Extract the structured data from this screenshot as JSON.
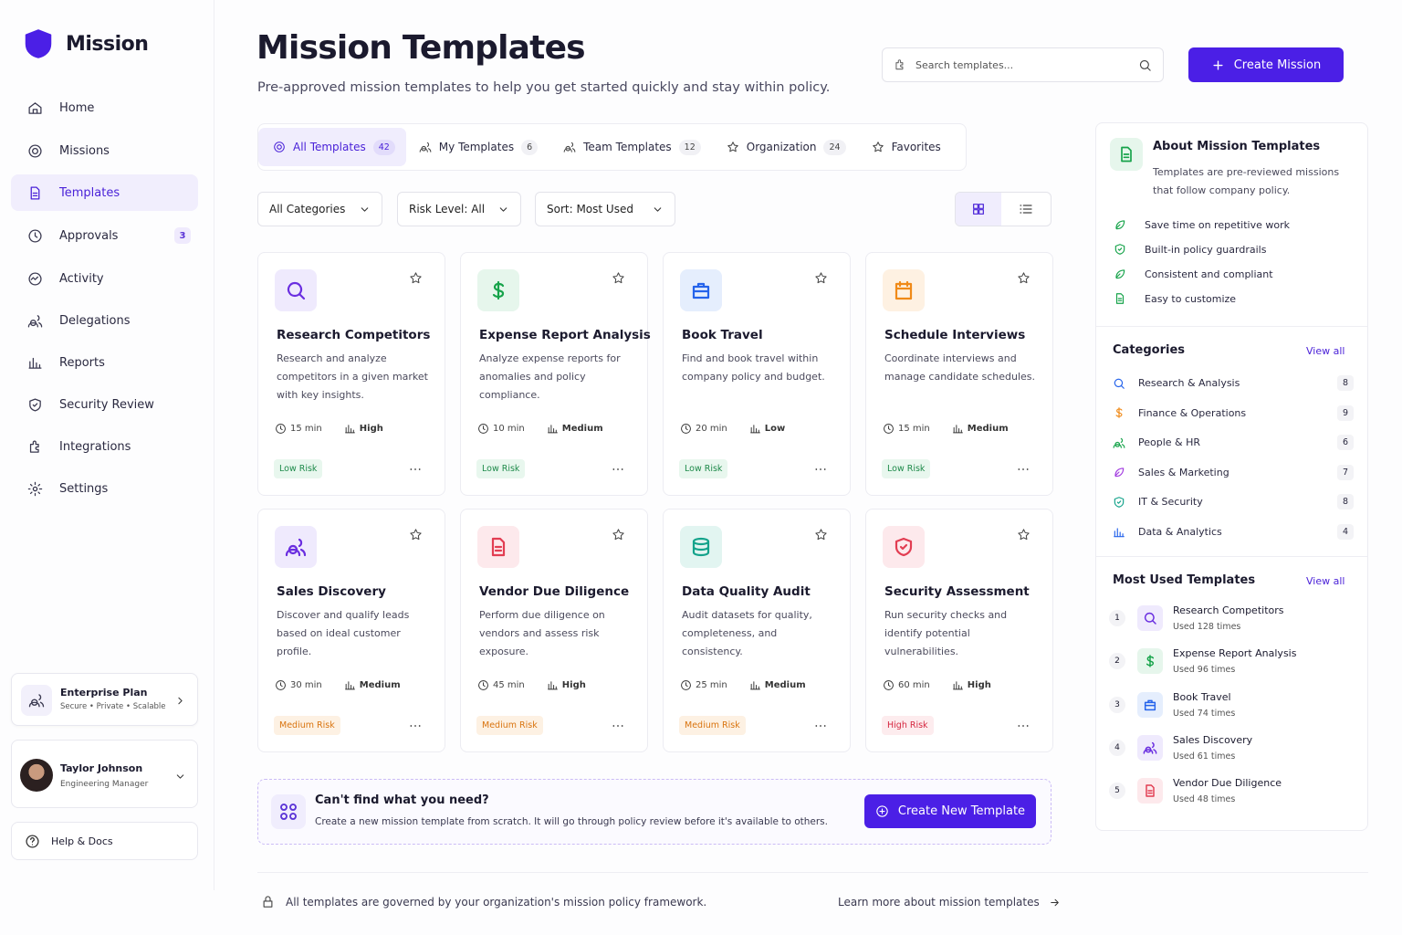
{
  "brand": "Mission",
  "nav": [
    {
      "label": "Home"
    },
    {
      "label": "Missions"
    },
    {
      "label": "Templates"
    },
    {
      "label": "Approvals",
      "badge": 3
    },
    {
      "label": "Activity"
    },
    {
      "label": "Delegations"
    },
    {
      "label": "Reports"
    },
    {
      "label": "Security Review"
    },
    {
      "label": "Integrations"
    },
    {
      "label": "Settings"
    }
  ],
  "plan": {
    "title": "Enterprise Plan",
    "subtitle": "Secure • Private • Scalable"
  },
  "user": {
    "name": "Taylor Johnson",
    "role": "Engineering Manager"
  },
  "help": "Help & Docs",
  "header": {
    "title": "Mission Templates",
    "subtitle": "Pre-approved mission templates to help you get started quickly and stay within policy.",
    "search_placeholder": "Search templates...",
    "create_button": "Create Mission"
  },
  "tabs": [
    {
      "label": "All Templates",
      "count": 42
    },
    {
      "label": "My Templates",
      "count": 6
    },
    {
      "label": "Team Templates",
      "count": 12
    },
    {
      "label": "Organization",
      "count": 24
    },
    {
      "label": "Favorites"
    }
  ],
  "filters": [
    "All Categories",
    "Risk Level: All",
    "Sort: Most Used"
  ],
  "cards": [
    {
      "title": "Research Competitors",
      "description": "Research and analyze competitors in a given market with key insights.",
      "duration": "15 min",
      "complexity": "High",
      "risk": "Low Risk"
    },
    {
      "title": "Expense Report Analysis",
      "description": "Analyze expense reports for anomalies and policy compliance.",
      "duration": "10 min",
      "complexity": "Medium",
      "risk": "Low Risk"
    },
    {
      "title": "Book Travel",
      "description": "Find and book travel within company policy and budget.",
      "duration": "20 min",
      "complexity": "Low",
      "risk": "Low Risk"
    },
    {
      "title": "Schedule Interviews",
      "description": "Coordinate interviews and manage candidate schedules.",
      "duration": "15 min",
      "complexity": "Medium",
      "risk": "Low Risk"
    },
    {
      "title": "Sales Discovery",
      "description": "Discover and qualify leads based on ideal customer profile.",
      "duration": "30 min",
      "complexity": "Medium",
      "risk": "Medium Risk"
    },
    {
      "title": "Vendor Due Diligence",
      "description": "Perform due diligence on vendors and assess risk exposure.",
      "duration": "45 min",
      "complexity": "High",
      "risk": "Medium Risk"
    },
    {
      "title": "Data Quality Audit",
      "description": "Audit datasets for quality, completeness, and consistency.",
      "duration": "25 min",
      "complexity": "Medium",
      "risk": "Medium Risk"
    },
    {
      "title": "Security Assessment",
      "description": "Run security checks and identify potential vulnerabilities.",
      "duration": "60 min",
      "complexity": "High",
      "risk": "High Risk"
    }
  ],
  "cta": {
    "title": "Can't find what you need?",
    "text": "Create a new mission template from scratch. It will go through policy review before it's available to others.",
    "button": "Create New Template"
  },
  "about": {
    "title": "About Mission Templates",
    "text": "Templates are pre-reviewed missions that follow company policy.",
    "features": [
      "Save time on repetitive work",
      "Built-in policy guardrails",
      "Consistent and compliant",
      "Easy to customize"
    ]
  },
  "categories": {
    "title": "Categories",
    "view_all": "View all",
    "items": [
      {
        "name": "Research & Analysis",
        "count": 8
      },
      {
        "name": "Finance & Operations",
        "count": 9
      },
      {
        "name": "People & HR",
        "count": 6
      },
      {
        "name": "Sales & Marketing",
        "count": 7
      },
      {
        "name": "IT & Security",
        "count": 8
      },
      {
        "name": "Data & Analytics",
        "count": 4
      }
    ]
  },
  "most_used": {
    "title": "Most Used Templates",
    "view_all": "View all",
    "items": [
      {
        "rank": 1,
        "name": "Research Competitors",
        "usage": "Used 128 times"
      },
      {
        "rank": 2,
        "name": "Expense Report Analysis",
        "usage": "Used 96 times"
      },
      {
        "rank": 3,
        "name": "Book Travel",
        "usage": "Used 74 times"
      },
      {
        "rank": 4,
        "name": "Sales Discovery",
        "usage": "Used 61 times"
      },
      {
        "rank": 5,
        "name": "Vendor Due Diligence",
        "usage": "Used 48 times"
      }
    ]
  },
  "footer": {
    "note": "All templates are governed by your organization's mission policy framework.",
    "link": "Learn more about mission templates"
  }
}
